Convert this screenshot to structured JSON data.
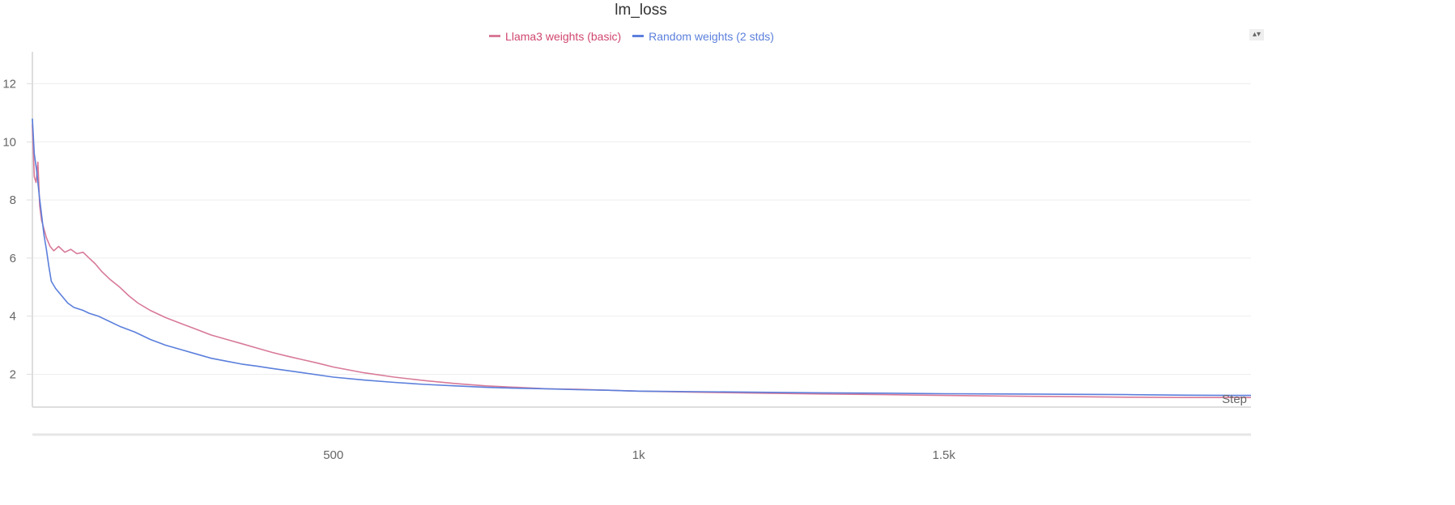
{
  "chart_data": {
    "type": "line",
    "title": "lm_loss",
    "xlabel": "Step",
    "ylabel": "",
    "xlim": [
      7,
      2003
    ],
    "ylim": [
      0.87,
      13.1
    ],
    "x_ticks": [
      {
        "v": 500,
        "label": "500"
      },
      {
        "v": 1000,
        "label": "1k"
      },
      {
        "v": 1500,
        "label": "1.5k"
      }
    ],
    "y_ticks": [
      {
        "v": 2,
        "label": "2"
      },
      {
        "v": 4,
        "label": "4"
      },
      {
        "v": 6,
        "label": "6"
      },
      {
        "v": 8,
        "label": "8"
      },
      {
        "v": 10,
        "label": "10"
      },
      {
        "v": 12,
        "label": "12"
      }
    ],
    "grid": true,
    "legend_position": "top-center",
    "series": [
      {
        "name": "Llama3 weights (basic)",
        "color": "#d87a98",
        "legend_color": "#d0476f",
        "points": [
          [
            7,
            10.6
          ],
          [
            10,
            8.8
          ],
          [
            13,
            8.6
          ],
          [
            16,
            9.3
          ],
          [
            19,
            7.8
          ],
          [
            22,
            7.3
          ],
          [
            26,
            7.0
          ],
          [
            30,
            6.7
          ],
          [
            36,
            6.4
          ],
          [
            42,
            6.25
          ],
          [
            50,
            6.4
          ],
          [
            60,
            6.2
          ],
          [
            70,
            6.3
          ],
          [
            80,
            6.15
          ],
          [
            90,
            6.2
          ],
          [
            100,
            6.0
          ],
          [
            110,
            5.8
          ],
          [
            120,
            5.55
          ],
          [
            135,
            5.25
          ],
          [
            150,
            5.0
          ],
          [
            165,
            4.7
          ],
          [
            180,
            4.45
          ],
          [
            200,
            4.2
          ],
          [
            225,
            3.95
          ],
          [
            250,
            3.75
          ],
          [
            275,
            3.55
          ],
          [
            300,
            3.35
          ],
          [
            325,
            3.2
          ],
          [
            350,
            3.05
          ],
          [
            375,
            2.9
          ],
          [
            400,
            2.75
          ],
          [
            425,
            2.62
          ],
          [
            450,
            2.5
          ],
          [
            475,
            2.38
          ],
          [
            500,
            2.25
          ],
          [
            550,
            2.05
          ],
          [
            600,
            1.9
          ],
          [
            650,
            1.78
          ],
          [
            700,
            1.68
          ],
          [
            750,
            1.6
          ],
          [
            800,
            1.55
          ],
          [
            850,
            1.5
          ],
          [
            900,
            1.48
          ],
          [
            950,
            1.45
          ],
          [
            1000,
            1.42
          ],
          [
            1100,
            1.38
          ],
          [
            1200,
            1.35
          ],
          [
            1300,
            1.32
          ],
          [
            1400,
            1.3
          ],
          [
            1500,
            1.27
          ],
          [
            1600,
            1.25
          ],
          [
            1700,
            1.23
          ],
          [
            1800,
            1.21
          ],
          [
            1900,
            1.2
          ],
          [
            2003,
            1.2
          ]
        ]
      },
      {
        "name": "Random weights (2 stds)",
        "color": "#5b7fdc",
        "legend_color": "#5b7fdc",
        "points": [
          [
            7,
            10.8
          ],
          [
            10,
            9.6
          ],
          [
            14,
            9.0
          ],
          [
            18,
            8.2
          ],
          [
            22,
            7.5
          ],
          [
            26,
            6.8
          ],
          [
            30,
            6.3
          ],
          [
            34,
            5.7
          ],
          [
            38,
            5.2
          ],
          [
            45,
            4.95
          ],
          [
            55,
            4.7
          ],
          [
            65,
            4.45
          ],
          [
            75,
            4.3
          ],
          [
            90,
            4.2
          ],
          [
            100,
            4.1
          ],
          [
            115,
            4.0
          ],
          [
            130,
            3.85
          ],
          [
            150,
            3.65
          ],
          [
            175,
            3.45
          ],
          [
            200,
            3.2
          ],
          [
            225,
            3.0
          ],
          [
            250,
            2.85
          ],
          [
            275,
            2.7
          ],
          [
            300,
            2.55
          ],
          [
            325,
            2.45
          ],
          [
            350,
            2.35
          ],
          [
            375,
            2.28
          ],
          [
            400,
            2.2
          ],
          [
            450,
            2.05
          ],
          [
            500,
            1.9
          ],
          [
            550,
            1.8
          ],
          [
            600,
            1.72
          ],
          [
            650,
            1.65
          ],
          [
            700,
            1.6
          ],
          [
            750,
            1.55
          ],
          [
            800,
            1.52
          ],
          [
            850,
            1.5
          ],
          [
            900,
            1.47
          ],
          [
            950,
            1.45
          ],
          [
            1000,
            1.42
          ],
          [
            1100,
            1.4
          ],
          [
            1200,
            1.38
          ],
          [
            1300,
            1.36
          ],
          [
            1400,
            1.35
          ],
          [
            1500,
            1.33
          ],
          [
            1600,
            1.32
          ],
          [
            1700,
            1.31
          ],
          [
            1800,
            1.3
          ],
          [
            1900,
            1.28
          ],
          [
            2003,
            1.27
          ]
        ]
      }
    ]
  }
}
